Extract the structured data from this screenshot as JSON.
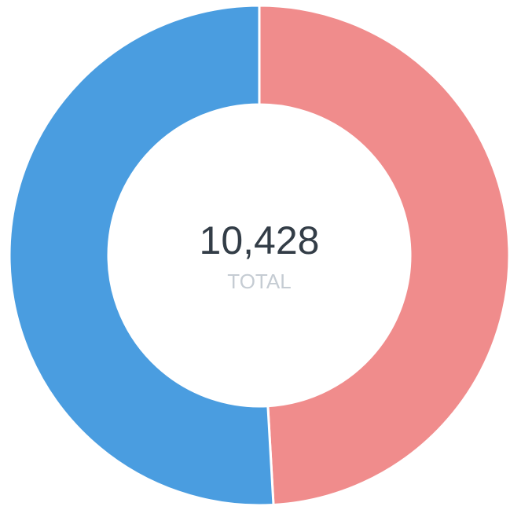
{
  "chart_data": {
    "type": "donut",
    "values": [
      5120,
      5308
    ],
    "colors": [
      "#f08c8c",
      "#4a9de0"
    ],
    "center": {
      "value": 10428,
      "label": "10,428",
      "caption": "TOTAL"
    }
  }
}
